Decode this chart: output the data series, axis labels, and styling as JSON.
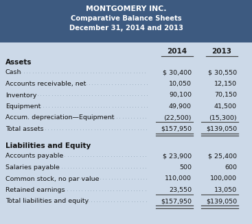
{
  "title1": "MONTGOMERY INC.",
  "title2": "Comparative Balance Sheets",
  "title3": "December 31, 2014 and 2013",
  "header_bg": "#3d5a80",
  "header_text_color": "#ffffff",
  "body_bg": "#ccd9e8",
  "col_2014": "2014",
  "col_2013": "2013",
  "assets_header": "Assets",
  "assets_rows": [
    [
      "Cash",
      "$ 30,400",
      "$ 30,550"
    ],
    [
      "Accounts receivable, net",
      "10,050",
      "12,150"
    ],
    [
      "Inventory",
      "90,100",
      "70,150"
    ],
    [
      "Equipment",
      "49,900",
      "41,500"
    ],
    [
      "Accum. depreciation—Equipment",
      "(22,500)",
      "(15,300)"
    ],
    [
      "Total assets",
      "$157,950",
      "$139,050"
    ]
  ],
  "liab_header": "Liabilities and Equity",
  "liab_rows": [
    [
      "Accounts payable",
      "$ 23,900",
      "$ 25,400"
    ],
    [
      "Salaries payable",
      "500",
      "600"
    ],
    [
      "Common stock, no par value",
      "110,000",
      "100,000"
    ],
    [
      "Retained earnings",
      "23,550",
      "13,050"
    ],
    [
      "Total liabilities and equity",
      "$157,950",
      "$139,050"
    ]
  ]
}
